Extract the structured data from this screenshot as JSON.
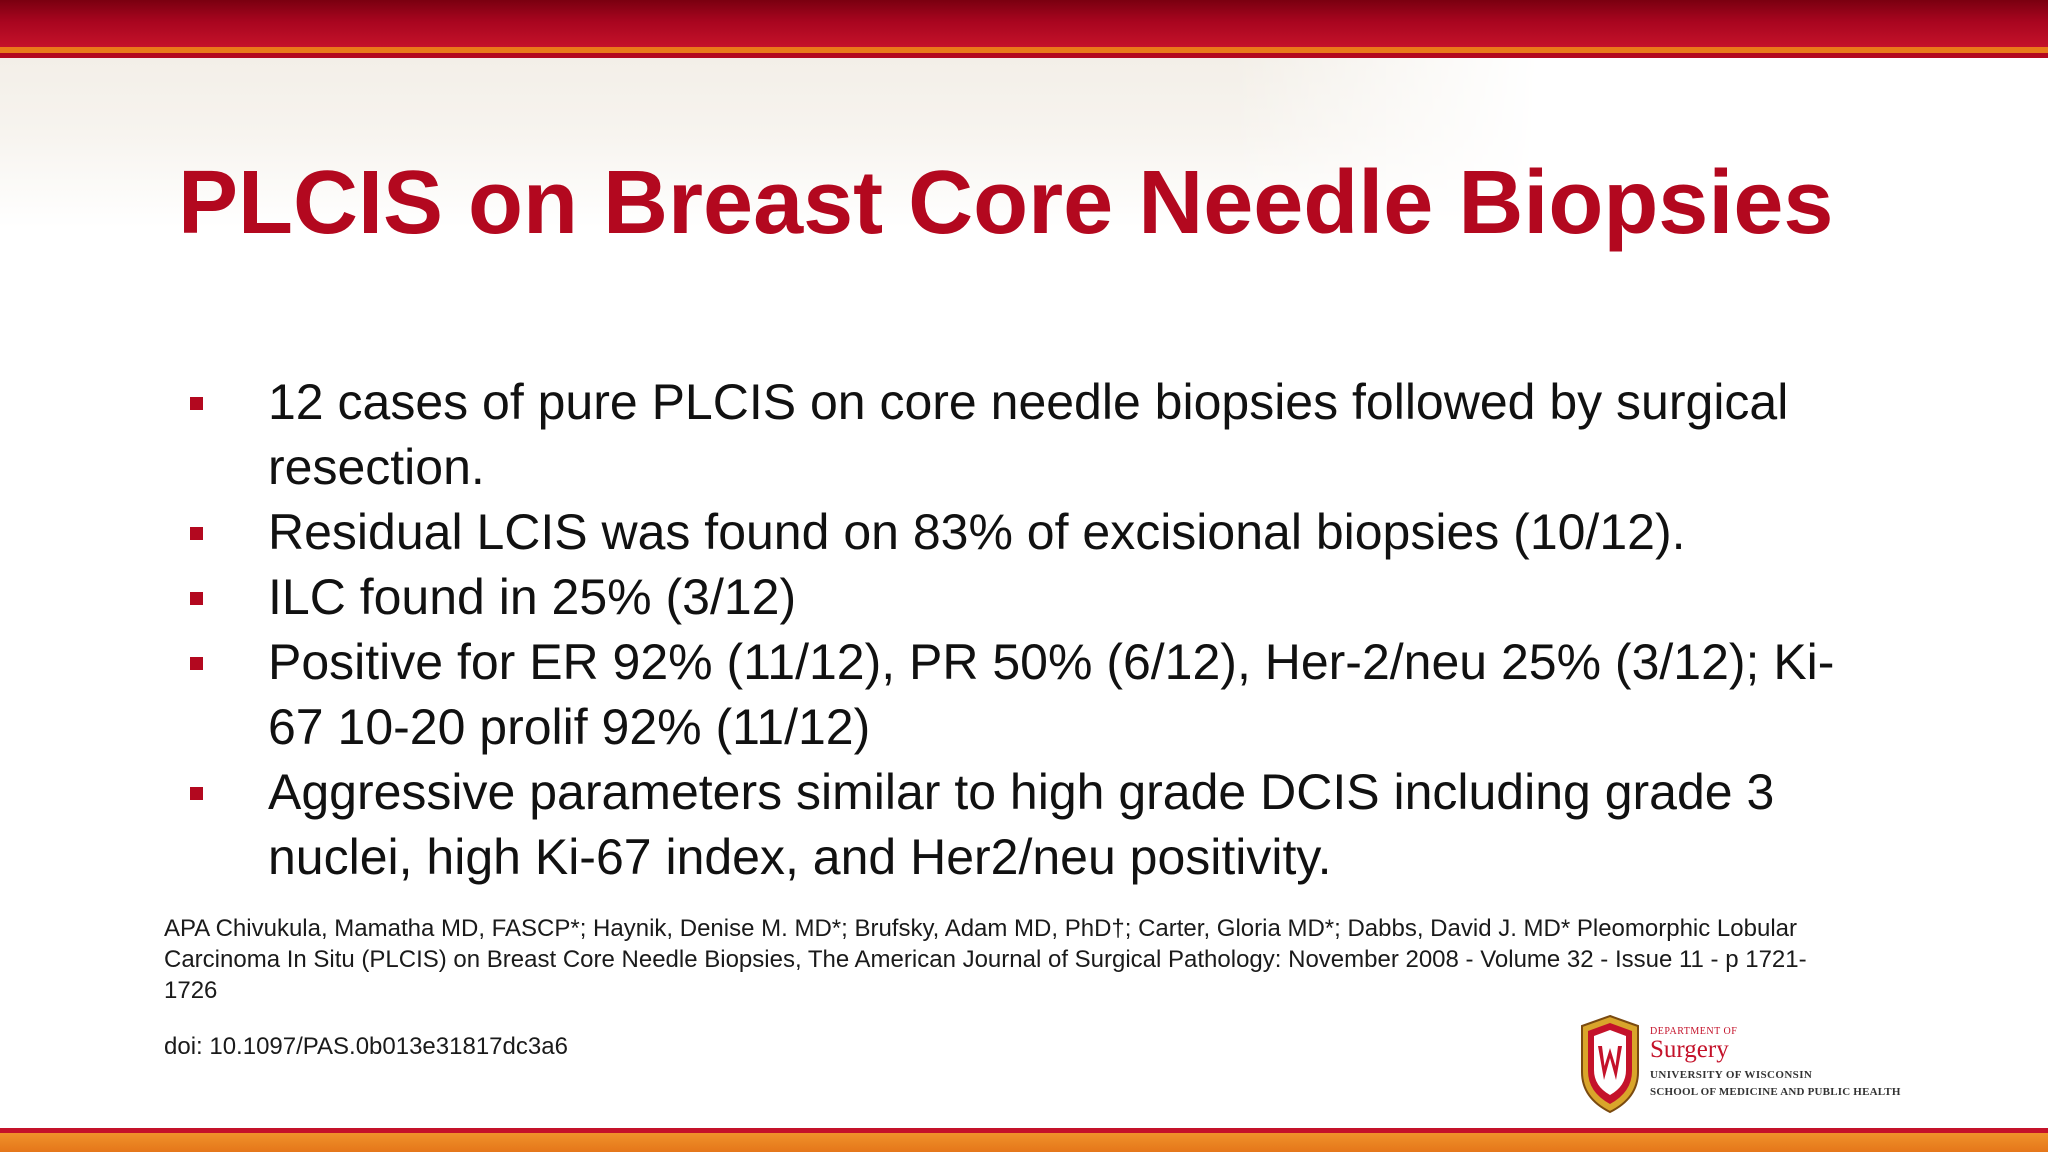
{
  "slide": {
    "title": "PLCIS on Breast Core Needle Biopsies",
    "bullets": [
      "12 cases of pure PLCIS on core needle biopsies followed by surgical resection.",
      "Residual LCIS was found on 83% of excisional biopsies (10/12).",
      "ILC found in 25% (3/12)",
      "Positive for ER 92% (11/12), PR 50% (6/12), Her-2/neu 25% (3/12); Ki-67 10-20 prolif 92% (11/12)",
      "Aggressive parameters similar to high grade DCIS including grade 3 nuclei, high Ki-67 index, and Her2/neu positivity."
    ],
    "citation": "APA Chivukula, Mamatha MD, FASCP*; Haynik, Denise M. MD*; Brufsky, Adam MD, PhD†; Carter, Gloria MD*; Dabbs, David J. MD* Pleomorphic Lobular Carcinoma In Situ (PLCIS) on Breast Core Needle Biopsies, The American Journal of Surgical Pathology: November 2008 - Volume 32 - Issue 11 - p 1721-1726",
    "doi": "doi: 10.1097/PAS.0b013e31817dc3a6"
  },
  "logo": {
    "icon": "uw-crest-icon",
    "department": "Department of",
    "name": "Surgery",
    "university": "University of Wisconsin",
    "school": "School of Medicine and Public Health"
  },
  "colors": {
    "accent_red": "#b3081f",
    "band_dark_red": "#7a0010",
    "band_orange": "#e97a1a",
    "text": "#111111"
  }
}
